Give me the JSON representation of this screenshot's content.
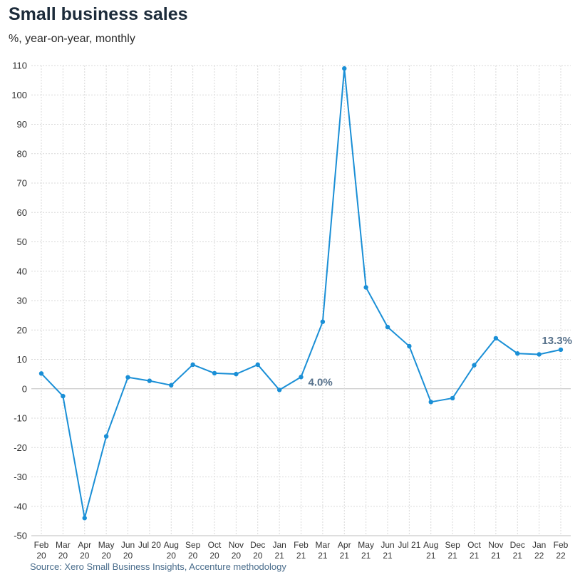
{
  "title": "Small business sales",
  "subtitle": "%, year-on-year, monthly",
  "source": "Source: Xero Small Business Insights, Accenture methodology",
  "colors": {
    "line": "#1a8fd6",
    "grid": "#d9d9d9",
    "annotation": "#56708a"
  },
  "chart_data": {
    "type": "line",
    "title": "Small business sales",
    "subtitle": "%, year-on-year, monthly",
    "xlabel": "",
    "ylabel": "",
    "ylim": [
      -50,
      110
    ],
    "yticks": [
      -50,
      -40,
      -30,
      -20,
      -10,
      0,
      10,
      20,
      30,
      40,
      50,
      60,
      70,
      80,
      90,
      100,
      110
    ],
    "grid": true,
    "categories": [
      [
        "Feb",
        "20"
      ],
      [
        "Mar",
        "20"
      ],
      [
        "Apr",
        "20"
      ],
      [
        "May",
        "20"
      ],
      [
        "Jun",
        "20"
      ],
      [
        "Jul 20",
        ""
      ],
      [
        "Aug",
        "20"
      ],
      [
        "Sep",
        "20"
      ],
      [
        "Oct",
        "20"
      ],
      [
        "Nov",
        "20"
      ],
      [
        "Dec",
        "20"
      ],
      [
        "Jan",
        "21"
      ],
      [
        "Feb",
        "21"
      ],
      [
        "Mar",
        "21"
      ],
      [
        "Apr",
        "21"
      ],
      [
        "May",
        "21"
      ],
      [
        "Jun",
        "21"
      ],
      [
        "Jul 21",
        ""
      ],
      [
        "Aug",
        "21"
      ],
      [
        "Sep",
        "21"
      ],
      [
        "Oct",
        "21"
      ],
      [
        "Nov",
        "21"
      ],
      [
        "Dec",
        "21"
      ],
      [
        "Jan",
        "22"
      ],
      [
        "Feb",
        "22"
      ]
    ],
    "series": [
      {
        "values": [
          5.2,
          -2.5,
          -44.0,
          -16.2,
          3.9,
          2.7,
          1.2,
          8.2,
          5.3,
          5.0,
          8.2,
          -0.4,
          4.0,
          22.8,
          109.0,
          34.5,
          21.0,
          14.5,
          -4.5,
          -3.2,
          8.0,
          17.2,
          12.0,
          11.7,
          13.3
        ]
      }
    ],
    "annotations": [
      {
        "index": 12,
        "text": "4.0%"
      },
      {
        "index": 24,
        "text": "13.3%"
      }
    ]
  }
}
